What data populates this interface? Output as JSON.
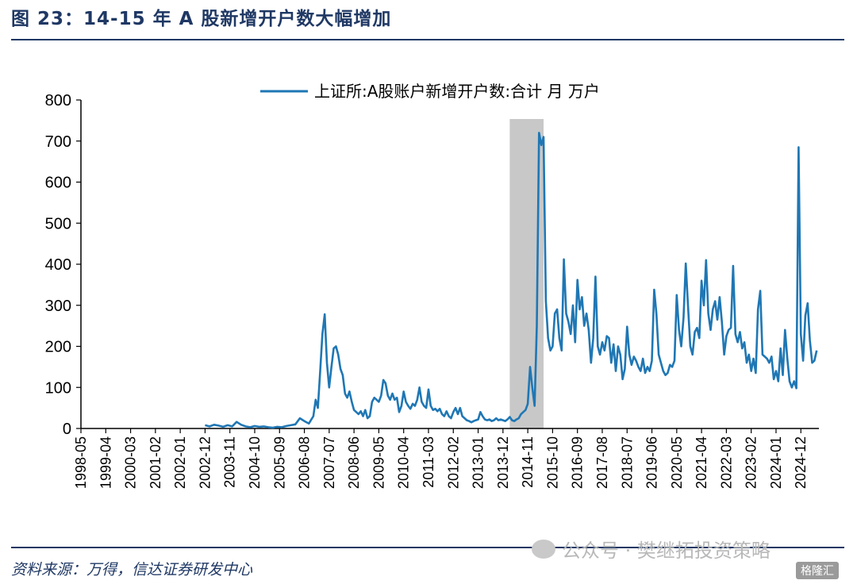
{
  "figure": {
    "title": "图 23：14-15 年 A 股新增开户数大幅增加",
    "source": "资料来源：万得，信达证券研发中心",
    "watermark": "公众号 · 樊继拓投资策略",
    "badge": "格隆汇"
  },
  "colors": {
    "line": "#1f77b4",
    "shade": "#c8c8c8",
    "text": "#1f3864",
    "axis": "#000000"
  },
  "chart_data": {
    "type": "line",
    "title": "",
    "xlabel": "",
    "ylabel": "",
    "ylim": [
      0,
      800
    ],
    "yticks": [
      0,
      100,
      200,
      300,
      400,
      500,
      600,
      700,
      800
    ],
    "xlim": [
      "1998-05",
      "2025-08"
    ],
    "xtick_labels": [
      "1998-05",
      "1999-04",
      "2000-03",
      "2001-02",
      "2002-01",
      "2002-12",
      "2003-11",
      "2004-10",
      "2005-09",
      "2006-08",
      "2007-07",
      "2008-06",
      "2009-05",
      "2010-04",
      "2011-03",
      "2012-02",
      "2013-01",
      "2013-12",
      "2014-11",
      "2015-10",
      "2016-09",
      "2017-08",
      "2018-07",
      "2019-06",
      "2020-05",
      "2021-04",
      "2022-03",
      "2023-02",
      "2024-01",
      "2024-12"
    ],
    "legend": {
      "label": "上证所:A股账户新增开户数:合计  月  万户",
      "placement": "top"
    },
    "grid": false,
    "shaded_region": [
      "2014-03",
      "2015-06"
    ],
    "series": [
      {
        "name": "上证所:A股账户新增开户数:合计  月  万户",
        "points": [
          [
            "2002-12",
            8
          ],
          [
            "2003-02",
            5
          ],
          [
            "2003-04",
            9
          ],
          [
            "2003-06",
            7
          ],
          [
            "2003-08",
            4
          ],
          [
            "2003-10",
            8
          ],
          [
            "2003-12",
            5
          ],
          [
            "2004-02",
            16
          ],
          [
            "2004-04",
            9
          ],
          [
            "2004-06",
            5
          ],
          [
            "2004-08",
            3
          ],
          [
            "2004-10",
            6
          ],
          [
            "2004-12",
            4
          ],
          [
            "2005-02",
            5
          ],
          [
            "2005-04",
            3
          ],
          [
            "2005-06",
            2
          ],
          [
            "2005-08",
            4
          ],
          [
            "2005-10",
            3
          ],
          [
            "2005-12",
            6
          ],
          [
            "2006-02",
            8
          ],
          [
            "2006-04",
            10
          ],
          [
            "2006-06",
            25
          ],
          [
            "2006-08",
            18
          ],
          [
            "2006-10",
            12
          ],
          [
            "2006-12",
            30
          ],
          [
            "2007-01",
            70
          ],
          [
            "2007-02",
            50
          ],
          [
            "2007-03",
            140
          ],
          [
            "2007-04",
            230
          ],
          [
            "2007-05",
            278
          ],
          [
            "2007-06",
            160
          ],
          [
            "2007-07",
            100
          ],
          [
            "2007-08",
            150
          ],
          [
            "2007-09",
            195
          ],
          [
            "2007-10",
            200
          ],
          [
            "2007-11",
            180
          ],
          [
            "2007-12",
            145
          ],
          [
            "2008-01",
            130
          ],
          [
            "2008-02",
            85
          ],
          [
            "2008-03",
            75
          ],
          [
            "2008-04",
            90
          ],
          [
            "2008-05",
            65
          ],
          [
            "2008-06",
            45
          ],
          [
            "2008-07",
            40
          ],
          [
            "2008-08",
            35
          ],
          [
            "2008-09",
            42
          ],
          [
            "2008-10",
            30
          ],
          [
            "2008-11",
            45
          ],
          [
            "2008-12",
            25
          ],
          [
            "2009-01",
            30
          ],
          [
            "2009-02",
            65
          ],
          [
            "2009-03",
            75
          ],
          [
            "2009-04",
            70
          ],
          [
            "2009-05",
            65
          ],
          [
            "2009-06",
            80
          ],
          [
            "2009-07",
            118
          ],
          [
            "2009-08",
            110
          ],
          [
            "2009-09",
            80
          ],
          [
            "2009-10",
            70
          ],
          [
            "2009-11",
            85
          ],
          [
            "2009-12",
            70
          ],
          [
            "2010-01",
            75
          ],
          [
            "2010-02",
            40
          ],
          [
            "2010-03",
            55
          ],
          [
            "2010-04",
            90
          ],
          [
            "2010-05",
            65
          ],
          [
            "2010-06",
            55
          ],
          [
            "2010-07",
            48
          ],
          [
            "2010-08",
            60
          ],
          [
            "2010-09",
            55
          ],
          [
            "2010-10",
            70
          ],
          [
            "2010-11",
            100
          ],
          [
            "2010-12",
            65
          ],
          [
            "2011-01",
            55
          ],
          [
            "2011-02",
            50
          ],
          [
            "2011-03",
            95
          ],
          [
            "2011-04",
            55
          ],
          [
            "2011-05",
            45
          ],
          [
            "2011-06",
            48
          ],
          [
            "2011-07",
            42
          ],
          [
            "2011-08",
            48
          ],
          [
            "2011-09",
            35
          ],
          [
            "2011-10",
            30
          ],
          [
            "2011-11",
            42
          ],
          [
            "2011-12",
            30
          ],
          [
            "2012-01",
            25
          ],
          [
            "2012-02",
            40
          ],
          [
            "2012-03",
            50
          ],
          [
            "2012-04",
            35
          ],
          [
            "2012-05",
            50
          ],
          [
            "2012-06",
            30
          ],
          [
            "2012-07",
            25
          ],
          [
            "2012-08",
            20
          ],
          [
            "2012-09",
            18
          ],
          [
            "2012-10",
            15
          ],
          [
            "2012-11",
            18
          ],
          [
            "2012-12",
            20
          ],
          [
            "2013-01",
            22
          ],
          [
            "2013-02",
            40
          ],
          [
            "2013-03",
            30
          ],
          [
            "2013-04",
            22
          ],
          [
            "2013-05",
            20
          ],
          [
            "2013-06",
            22
          ],
          [
            "2013-07",
            18
          ],
          [
            "2013-08",
            20
          ],
          [
            "2013-09",
            25
          ],
          [
            "2013-10",
            20
          ],
          [
            "2013-11",
            22
          ],
          [
            "2013-12",
            20
          ],
          [
            "2014-01",
            18
          ],
          [
            "2014-02",
            22
          ],
          [
            "2014-03",
            28
          ],
          [
            "2014-04",
            20
          ],
          [
            "2014-05",
            18
          ],
          [
            "2014-06",
            22
          ],
          [
            "2014-07",
            25
          ],
          [
            "2014-08",
            35
          ],
          [
            "2014-09",
            40
          ],
          [
            "2014-10",
            45
          ],
          [
            "2014-11",
            60
          ],
          [
            "2014-12",
            150
          ],
          [
            "2015-01",
            100
          ],
          [
            "2015-02",
            55
          ],
          [
            "2015-03",
            250
          ],
          [
            "2015-04",
            720
          ],
          [
            "2015-05",
            690
          ],
          [
            "2015-06",
            710
          ],
          [
            "2015-07",
            310
          ],
          [
            "2015-08",
            220
          ],
          [
            "2015-09",
            190
          ],
          [
            "2015-10",
            200
          ],
          [
            "2015-11",
            280
          ],
          [
            "2015-12",
            290
          ],
          [
            "2016-01",
            220
          ],
          [
            "2016-02",
            190
          ],
          [
            "2016-03",
            412
          ],
          [
            "2016-04",
            280
          ],
          [
            "2016-05",
            260
          ],
          [
            "2016-06",
            230
          ],
          [
            "2016-07",
            300
          ],
          [
            "2016-08",
            210
          ],
          [
            "2016-09",
            362
          ],
          [
            "2016-10",
            290
          ],
          [
            "2016-11",
            320
          ],
          [
            "2016-12",
            250
          ],
          [
            "2017-01",
            280
          ],
          [
            "2017-02",
            240
          ],
          [
            "2017-03",
            160
          ],
          [
            "2017-04",
            220
          ],
          [
            "2017-05",
            370
          ],
          [
            "2017-06",
            200
          ],
          [
            "2017-07",
            180
          ],
          [
            "2017-08",
            210
          ],
          [
            "2017-09",
            190
          ],
          [
            "2017-10",
            225
          ],
          [
            "2017-11",
            220
          ],
          [
            "2017-12",
            160
          ],
          [
            "2018-01",
            205
          ],
          [
            "2018-02",
            140
          ],
          [
            "2018-03",
            200
          ],
          [
            "2018-04",
            180
          ],
          [
            "2018-05",
            120
          ],
          [
            "2018-06",
            145
          ],
          [
            "2018-07",
            248
          ],
          [
            "2018-08",
            180
          ],
          [
            "2018-09",
            155
          ],
          [
            "2018-10",
            175
          ],
          [
            "2018-11",
            165
          ],
          [
            "2018-12",
            150
          ],
          [
            "2019-01",
            140
          ],
          [
            "2019-02",
            170
          ],
          [
            "2019-03",
            135
          ],
          [
            "2019-04",
            150
          ],
          [
            "2019-05",
            140
          ],
          [
            "2019-06",
            165
          ],
          [
            "2019-07",
            338
          ],
          [
            "2019-08",
            280
          ],
          [
            "2019-09",
            180
          ],
          [
            "2019-10",
            160
          ],
          [
            "2019-11",
            140
          ],
          [
            "2019-12",
            130
          ],
          [
            "2020-01",
            135
          ],
          [
            "2020-02",
            155
          ],
          [
            "2020-03",
            150
          ],
          [
            "2020-04",
            165
          ],
          [
            "2020-05",
            325
          ],
          [
            "2020-06",
            240
          ],
          [
            "2020-07",
            200
          ],
          [
            "2020-08",
            270
          ],
          [
            "2020-09",
            402
          ],
          [
            "2020-10",
            300
          ],
          [
            "2020-11",
            200
          ],
          [
            "2020-12",
            180
          ],
          [
            "2021-01",
            235
          ],
          [
            "2021-02",
            245
          ],
          [
            "2021-03",
            220
          ],
          [
            "2021-04",
            360
          ],
          [
            "2021-05",
            300
          ],
          [
            "2021-06",
            410
          ],
          [
            "2021-07",
            280
          ],
          [
            "2021-08",
            240
          ],
          [
            "2021-09",
            290
          ],
          [
            "2021-10",
            310
          ],
          [
            "2021-11",
            265
          ],
          [
            "2021-12",
            320
          ],
          [
            "2022-01",
            260
          ],
          [
            "2022-02",
            180
          ],
          [
            "2022-03",
            225
          ],
          [
            "2022-04",
            240
          ],
          [
            "2022-05",
            245
          ],
          [
            "2022-06",
            396
          ],
          [
            "2022-07",
            230
          ],
          [
            "2022-08",
            210
          ],
          [
            "2022-09",
            235
          ],
          [
            "2022-10",
            195
          ],
          [
            "2022-11",
            210
          ],
          [
            "2022-12",
            160
          ],
          [
            "2023-01",
            180
          ],
          [
            "2023-02",
            140
          ],
          [
            "2023-03",
            170
          ],
          [
            "2023-04",
            135
          ],
          [
            "2023-05",
            290
          ],
          [
            "2023-06",
            335
          ],
          [
            "2023-07",
            180
          ],
          [
            "2023-08",
            175
          ],
          [
            "2023-09",
            170
          ],
          [
            "2023-10",
            160
          ],
          [
            "2023-11",
            175
          ],
          [
            "2023-12",
            120
          ],
          [
            "2024-01",
            140
          ],
          [
            "2024-02",
            115
          ],
          [
            "2024-03",
            195
          ],
          [
            "2024-04",
            130
          ],
          [
            "2024-05",
            240
          ],
          [
            "2024-06",
            170
          ],
          [
            "2024-07",
            115
          ],
          [
            "2024-08",
            100
          ],
          [
            "2024-09",
            115
          ],
          [
            "2024-10",
            98
          ],
          [
            "2024-11",
            685
          ],
          [
            "2024-12",
            230
          ],
          [
            "2025-01",
            165
          ],
          [
            "2025-02",
            275
          ],
          [
            "2025-03",
            305
          ],
          [
            "2025-04",
            215
          ],
          [
            "2025-05",
            160
          ],
          [
            "2025-06",
            165
          ],
          [
            "2025-07",
            190
          ]
        ]
      }
    ]
  }
}
